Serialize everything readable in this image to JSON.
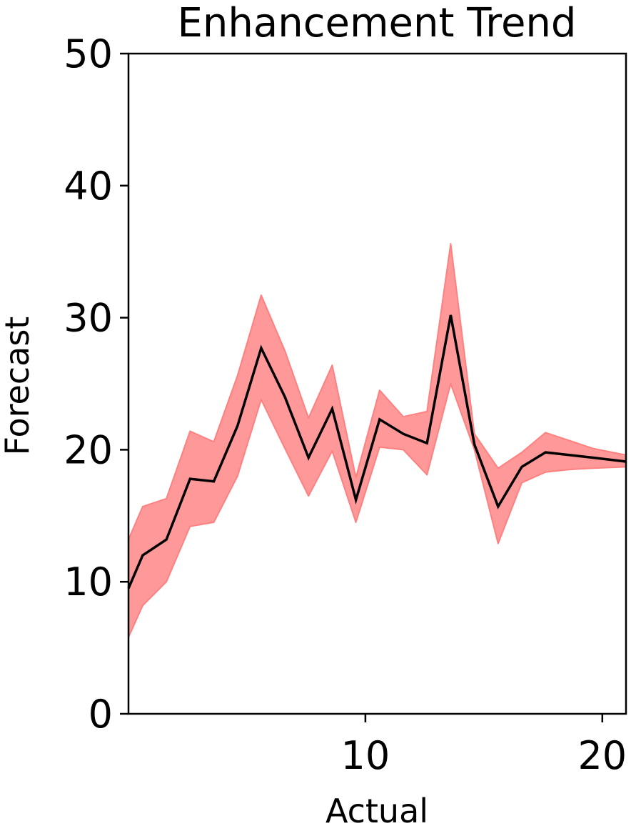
{
  "chart_data": {
    "type": "line",
    "title": "Enhancement Trend",
    "xlabel": "Actual",
    "ylabel": "Forecast",
    "xlim": [
      0,
      21
    ],
    "ylim": [
      0,
      50
    ],
    "xticks": [
      10,
      20
    ],
    "yticks": [
      0,
      10,
      20,
      30,
      40,
      50
    ],
    "grid": false,
    "legend": "none",
    "colors": {
      "line": "#000000",
      "band_fill": "#ff9999",
      "band_edge": "#ff8080"
    },
    "series": [
      {
        "x": [
          0,
          0.6,
          1.6,
          2.6,
          3.6,
          4.6,
          5.6,
          6.6,
          7.6,
          8.6,
          9.6,
          10.6,
          11.6,
          12.6,
          13.6,
          14.6,
          15.6,
          16.6,
          17.6,
          18.6,
          19.6,
          21
        ],
        "y": [
          9.5,
          12.0,
          13.2,
          17.8,
          17.6,
          21.8,
          27.7,
          24.0,
          19.4,
          23.1,
          16.2,
          22.3,
          21.2,
          20.5,
          30.2,
          20.4,
          15.7,
          18.7,
          19.8,
          19.6,
          19.4,
          19.1
        ],
        "lower": [
          5.8,
          8.2,
          10.0,
          14.2,
          14.5,
          18.0,
          23.8,
          20.1,
          16.5,
          19.9,
          14.5,
          20.2,
          20.0,
          18.1,
          25.0,
          20.0,
          12.9,
          17.5,
          18.3,
          18.5,
          18.6,
          18.7
        ],
        "upper": [
          13.2,
          15.7,
          16.3,
          21.4,
          20.6,
          25.6,
          31.7,
          27.5,
          22.4,
          26.4,
          17.9,
          24.5,
          22.5,
          22.9,
          35.6,
          21.2,
          18.6,
          19.8,
          21.3,
          20.7,
          20.1,
          19.6
        ]
      }
    ]
  }
}
